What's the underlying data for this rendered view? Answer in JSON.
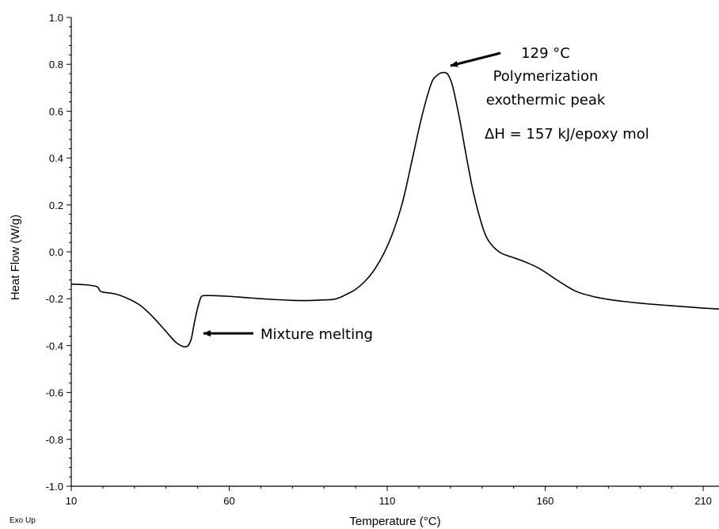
{
  "chart_data": {
    "type": "line",
    "xlabel": "Temperature (°C)",
    "ylabel": "Heat Flow (W/g)",
    "corner_label": "Exo Up",
    "xlim": [
      10,
      215
    ],
    "ylim": [
      -1.0,
      1.0
    ],
    "x_ticks": [
      10,
      60,
      110,
      160,
      210
    ],
    "x_tick_labels": [
      "10",
      "60",
      "110",
      "160",
      "210"
    ],
    "y_ticks": [
      -1.0,
      -0.8,
      -0.6,
      -0.4,
      -0.2,
      0.0,
      0.2,
      0.4,
      0.6,
      0.8,
      1.0
    ],
    "y_tick_labels": [
      "-1.0",
      "-0.8",
      "-0.6",
      "-0.4",
      "-0.2",
      "0.0",
      "0.2",
      "0.4",
      "0.6",
      "0.8",
      "1.0"
    ],
    "grid": false,
    "line_color": "#000000",
    "series": [
      {
        "x": [
          10,
          14,
          18,
          19,
          20,
          24,
          28,
          32,
          36,
          40,
          43,
          45,
          46,
          47,
          48,
          49,
          50,
          51,
          52,
          55,
          60,
          65,
          70,
          75,
          80,
          85,
          90,
          93,
          95,
          97,
          100,
          103,
          106,
          109,
          112,
          115,
          118,
          121,
          124,
          126,
          127,
          128,
          129,
          130,
          131,
          133,
          135,
          137,
          139,
          141,
          143,
          146,
          150,
          154,
          158,
          162,
          166,
          170,
          175,
          180,
          185,
          190,
          195,
          200,
          205,
          210,
          215
        ],
        "y": [
          -0.138,
          -0.14,
          -0.148,
          -0.165,
          -0.172,
          -0.18,
          -0.2,
          -0.23,
          -0.28,
          -0.34,
          -0.385,
          -0.402,
          -0.405,
          -0.4,
          -0.37,
          -0.3,
          -0.24,
          -0.195,
          -0.187,
          -0.187,
          -0.19,
          -0.195,
          -0.2,
          -0.204,
          -0.207,
          -0.208,
          -0.205,
          -0.203,
          -0.195,
          -0.182,
          -0.16,
          -0.125,
          -0.075,
          -0.005,
          0.09,
          0.22,
          0.4,
          0.58,
          0.72,
          0.755,
          0.763,
          0.765,
          0.76,
          0.735,
          0.69,
          0.56,
          0.41,
          0.27,
          0.16,
          0.075,
          0.03,
          -0.005,
          -0.025,
          -0.045,
          -0.07,
          -0.105,
          -0.14,
          -0.17,
          -0.19,
          -0.203,
          -0.212,
          -0.219,
          -0.225,
          -0.23,
          -0.235,
          -0.24,
          -0.244
        ]
      }
    ],
    "annotations": [
      {
        "text": "129 °C"
      },
      {
        "text": "Polymerization"
      },
      {
        "text": "exothermic peak"
      },
      {
        "text": "ΔH = 157 kJ/epoxy mol"
      },
      {
        "text": "Mixture melting"
      }
    ]
  }
}
